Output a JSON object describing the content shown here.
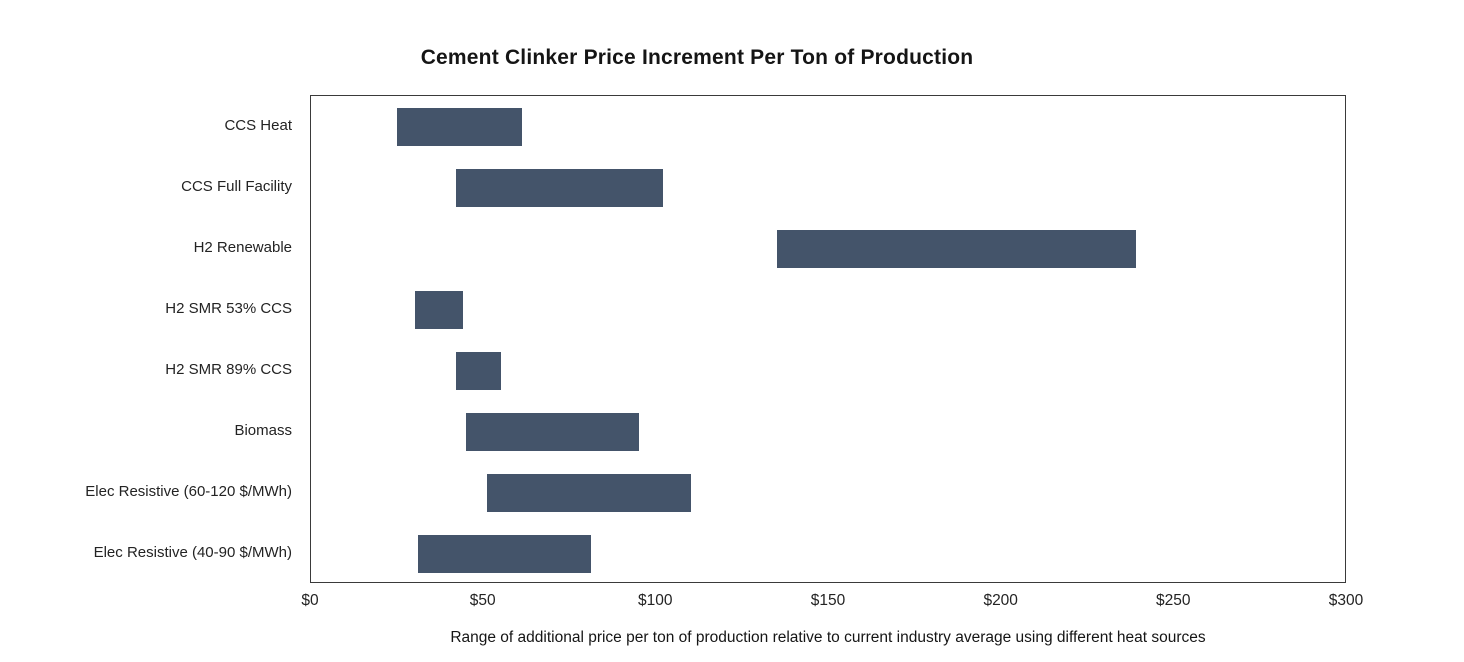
{
  "chart_data": {
    "type": "bar",
    "orientation": "horizontal",
    "variant": "range",
    "title": "Cement Clinker Price Increment Per Ton of Production",
    "xlabel": "Range of additional price per ton of production relative to current industry average  using different heat sources",
    "ylabel": "",
    "xlim": [
      0,
      300
    ],
    "xticks": [
      0,
      50,
      100,
      150,
      200,
      250,
      300
    ],
    "xtick_labels": [
      "$0",
      "$50",
      "$100",
      "$150",
      "$200",
      "$250",
      "$300"
    ],
    "grid": false,
    "legend": "none",
    "bar_color": "#44546A",
    "categories": [
      "CCS Heat",
      "CCS Full Facility",
      "H2 Renewable",
      "H2 SMR 53% CCS",
      "H2 SMR 89% CCS",
      "Biomass",
      "Elec Resistive (60-120 $/MWh)",
      "Elec Resistive (40-90 $/MWh)"
    ],
    "ranges": [
      {
        "low": 25,
        "high": 61
      },
      {
        "low": 42,
        "high": 102
      },
      {
        "low": 135,
        "high": 239
      },
      {
        "low": 30,
        "high": 44
      },
      {
        "low": 42,
        "high": 55
      },
      {
        "low": 45,
        "high": 95
      },
      {
        "low": 51,
        "high": 110
      },
      {
        "low": 31,
        "high": 81
      }
    ]
  }
}
